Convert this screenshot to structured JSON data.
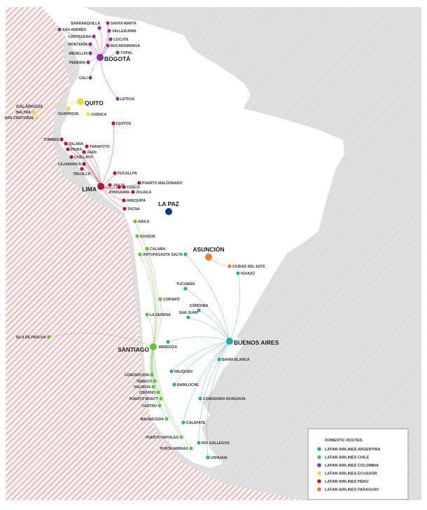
{
  "colors": {
    "argentina": "#2aa8b2",
    "chile": "#5ec43b",
    "colombia": "#9a2e98",
    "ecuador": "#f2d43c",
    "peru": "#c4102f",
    "paraguay": "#ee7a2c",
    "bolivia": "#053d91",
    "land": "#ffffff",
    "sea_gray": "#dddddd",
    "sea_red": "#e7a3a8"
  },
  "standalone": {
    "name": "LA PAZ"
  },
  "galapagos_title": "GALÁPAGOS",
  "networks": [
    {
      "key": "colombia",
      "hub": "BOGOTÁ",
      "cities": [
        "BARRANQUILLA",
        "SANTA MARTA",
        "SAN ANDRÉS",
        "VALLEDUPAR",
        "CARTAGENA",
        "CÚCUTA",
        "MONTERÍA",
        "BUCARAMANGA",
        "YOPAL",
        "MEDELLÍN",
        "PEREIRA",
        "CALI",
        "LETICIA"
      ]
    },
    {
      "key": "ecuador",
      "hub": "QUITO",
      "cities": [
        "GUAYAQUIL",
        "CUENCA",
        "BALTRA",
        "SAN CRISTÓBAL"
      ]
    },
    {
      "key": "peru",
      "hub": "LIMA",
      "cities": [
        "IQUITOS",
        "TUMBES",
        "TALARA",
        "PIURA",
        "TARAPOTO",
        "JAÉN",
        "CHICLAYO",
        "CAJAMARCA",
        "TRUJILLO",
        "PUCALLPA",
        "PUERTO MALDONADO",
        "JAUJA",
        "CUSCO",
        "AYACUCHO",
        "JULIACA",
        "AREQUIPA",
        "TACNA"
      ]
    },
    {
      "key": "chile",
      "hub": "SANTIAGO",
      "cities": [
        "ARICA",
        "IQUIQUE",
        "CALAMA",
        "ANTOFAGASTA",
        "COPIAPÓ",
        "LA SERENA",
        "ISLA DE PASCUA",
        "CONCEPCIÓN",
        "TEMUCO",
        "VALDIVIA",
        "OSORNO",
        "PUERTO MONTT",
        "CASTRO",
        "BALMACEDA",
        "PUERTO NATALES",
        "PUNTA ARENAS"
      ]
    },
    {
      "key": "argentina",
      "hub": "BUENOS AIRES",
      "cities": [
        "SALTA",
        "IGUAZÚ",
        "TUCUMÁN",
        "CÓRDOBA",
        "SAN JUAN",
        "MENDOZA",
        "BAHÍA BLANCA",
        "NEUQUÉN",
        "BARILOCHE",
        "COMODORO RIVADAVIA",
        "CALAFATE",
        "RÍO GALLEGOS",
        "USHUAIA"
      ]
    },
    {
      "key": "paraguay",
      "hub": "ASUNCIÓN",
      "cities": [
        "CIUDAD DEL ESTE"
      ]
    }
  ],
  "legend": {
    "title": "DOMESTIC ROUTES",
    "items": [
      {
        "label": "LATAM AIRLINES ARGENTINA",
        "color": "#2aa8b2"
      },
      {
        "label": "LATAM AIRLINES CHILE",
        "color": "#5ec43b"
      },
      {
        "label": "LATAM AIRLINES COLOMBIA",
        "color": "#9a2e98"
      },
      {
        "label": "LATAM AIRLINES ECUADOR",
        "color": "#f2d43c"
      },
      {
        "label": "LATAM AIRLINES PERU",
        "color": "#c4102f"
      },
      {
        "label": "LATAM AIRLINES PARAGUAY",
        "color": "#ee7a2c"
      }
    ]
  }
}
